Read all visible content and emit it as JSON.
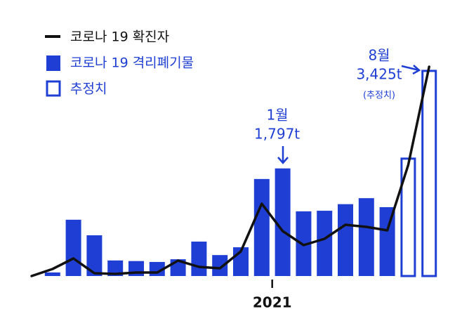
{
  "chart_data": {
    "type": "bar-line",
    "categories": [
      null,
      null,
      null,
      null,
      null,
      null,
      null,
      null,
      null,
      null,
      null,
      null,
      "2021",
      null,
      null,
      null,
      null,
      null,
      null,
      null
    ],
    "series": [
      {
        "name": "코로나 19 확진자",
        "type": "line",
        "color": "#111111",
        "axis": "y2",
        "values": [
          0,
          10,
          25,
          4,
          3,
          5,
          5,
          22,
          13,
          11,
          35,
          103,
          64,
          44,
          53,
          73,
          70,
          65,
          158,
          298
        ]
      },
      {
        "name": "코로나 19 격리폐기물",
        "type": "bar",
        "color": "#1f3fd4",
        "values": [
          null,
          60,
          940,
          680,
          260,
          250,
          235,
          280,
          575,
          350,
          480,
          1620,
          1797,
          1080,
          1090,
          1200,
          1300,
          1150,
          null,
          null
        ],
        "value_labels": [
          null,
          null,
          null,
          null,
          null,
          null,
          null,
          null,
          null,
          null,
          null,
          null,
          "1,797t",
          null,
          null,
          null,
          null,
          null,
          null,
          null
        ]
      },
      {
        "name": "추정치",
        "type": "bar-outline",
        "color": "#1f3fd4",
        "values": [
          null,
          null,
          null,
          null,
          null,
          null,
          null,
          null,
          null,
          null,
          null,
          null,
          null,
          null,
          null,
          null,
          null,
          null,
          1960,
          3425
        ],
        "value_labels": [
          null,
          null,
          null,
          null,
          null,
          null,
          null,
          null,
          null,
          null,
          null,
          null,
          null,
          null,
          null,
          null,
          null,
          null,
          null,
          "3,425t"
        ]
      }
    ],
    "annotations": [
      "1월",
      "8월",
      "(추정치)"
    ],
    "ylim": [
      0,
      3600
    ],
    "y2lim": [
      0,
      307
    ],
    "grid": false
  }
}
